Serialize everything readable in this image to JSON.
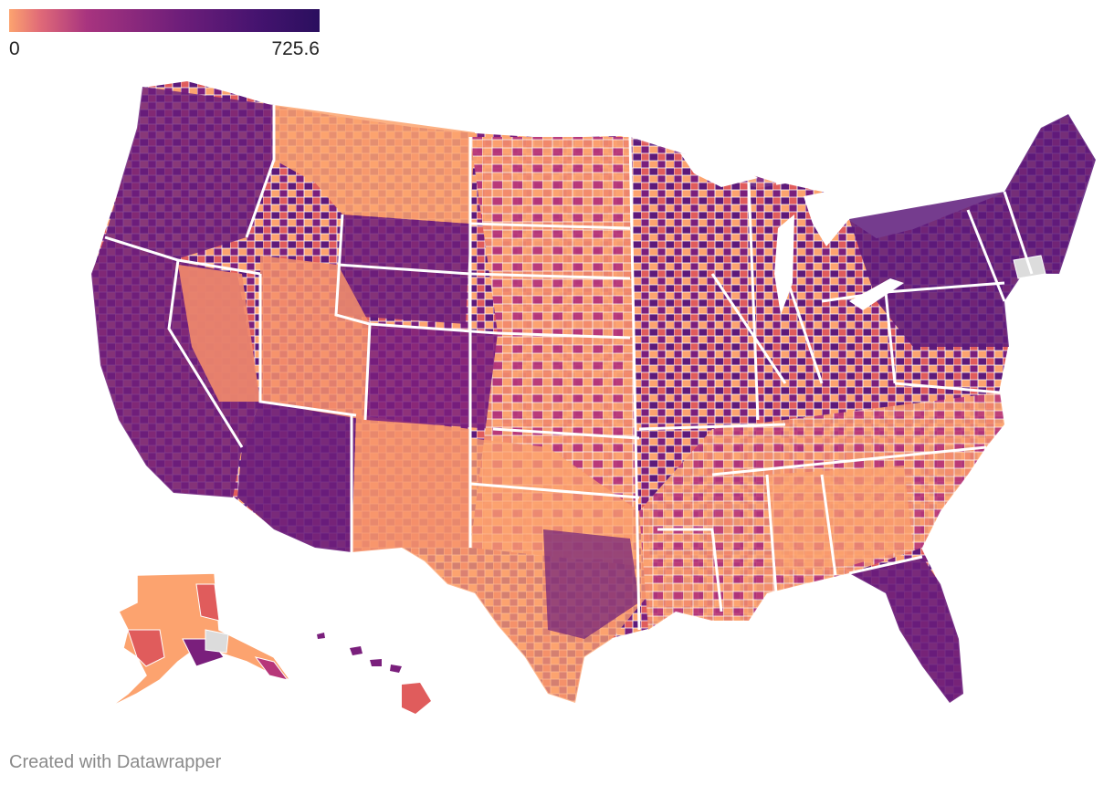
{
  "legend": {
    "min_label": "0",
    "max_label": "725.6",
    "min_value": 0,
    "max_value": 725.6,
    "gradient_colors": [
      "#fca36f",
      "#e05c5c",
      "#b73779",
      "#7a1f7c",
      "#3b0f70",
      "#1d1147"
    ],
    "missing_color": "#dcdcdc"
  },
  "regions": [
    {
      "name": "Alaska",
      "shown_as": "inset"
    },
    {
      "name": "Hawaii",
      "shown_as": "inset"
    },
    {
      "name": "Contiguous United States",
      "shown_as": "main"
    }
  ],
  "footer": {
    "credit": "Created with Datawrapper"
  }
}
